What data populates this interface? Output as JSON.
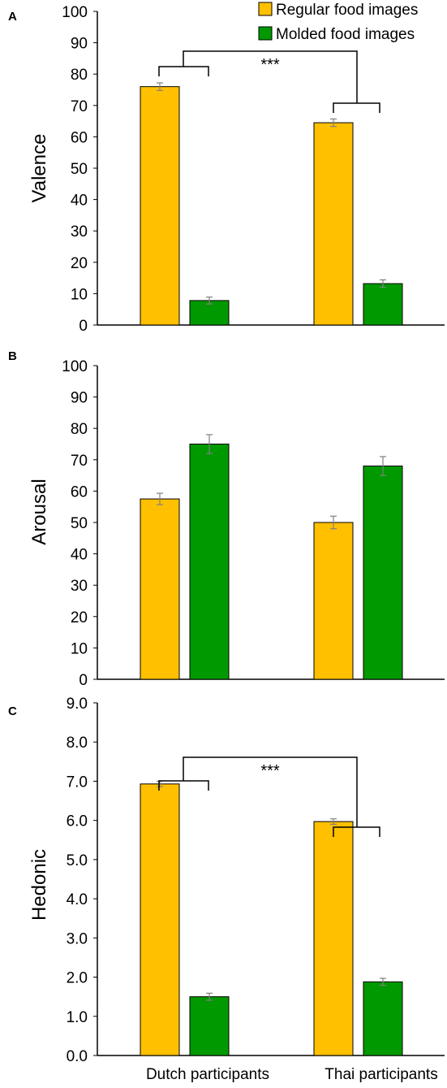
{
  "legend": [
    {
      "name": "Regular food images",
      "color": "#FFC000"
    },
    {
      "name": "Molded food images",
      "color": "#009900"
    }
  ],
  "colors": {
    "regular": "#FFC000",
    "molded": "#009900",
    "error_bar": "#808080"
  },
  "x_categories": [
    "Dutch participants",
    "Thai participants"
  ],
  "chart_data": [
    {
      "type": "bar",
      "panel": "A",
      "ylabel": "Valence",
      "categories": [
        "Dutch participants",
        "Thai participants"
      ],
      "series": [
        {
          "name": "Regular food images",
          "values": [
            76,
            64.5
          ],
          "errors": [
            1.2,
            1.2
          ]
        },
        {
          "name": "Molded food images",
          "values": [
            7.8,
            13.2
          ],
          "errors": [
            1.1,
            1.2
          ]
        }
      ],
      "ylim": [
        0,
        100
      ],
      "yticks": [
        "0",
        "10",
        "20",
        "30",
        "40",
        "50",
        "60",
        "70",
        "80",
        "90",
        "100"
      ],
      "grid": false,
      "legend_position": "top-right",
      "annotation": "***"
    },
    {
      "type": "bar",
      "panel": "B",
      "ylabel": "Arousal",
      "categories": [
        "Dutch participants",
        "Thai participants"
      ],
      "series": [
        {
          "name": "Regular food images",
          "values": [
            57.5,
            50
          ],
          "errors": [
            1.8,
            2.0
          ]
        },
        {
          "name": "Molded food images",
          "values": [
            75,
            68
          ],
          "errors": [
            3.0,
            3.0
          ]
        }
      ],
      "ylim": [
        0,
        100
      ],
      "yticks": [
        "0",
        "10",
        "20",
        "30",
        "40",
        "50",
        "60",
        "70",
        "80",
        "90",
        "100"
      ],
      "grid": false
    },
    {
      "type": "bar",
      "panel": "C",
      "ylabel": "Hedonic",
      "categories": [
        "Dutch participants",
        "Thai participants"
      ],
      "series": [
        {
          "name": "Regular food images",
          "values": [
            6.93,
            5.97
          ],
          "errors": [
            0.07,
            0.07
          ]
        },
        {
          "name": "Molded food images",
          "values": [
            1.5,
            1.88
          ],
          "errors": [
            0.09,
            0.09
          ]
        }
      ],
      "ylim": [
        0,
        9
      ],
      "yticks": [
        "0.0",
        "1.0",
        "2.0",
        "3.0",
        "4.0",
        "5.0",
        "6.0",
        "7.0",
        "8.0",
        "9.0"
      ],
      "grid": false,
      "annotation": "***"
    }
  ]
}
